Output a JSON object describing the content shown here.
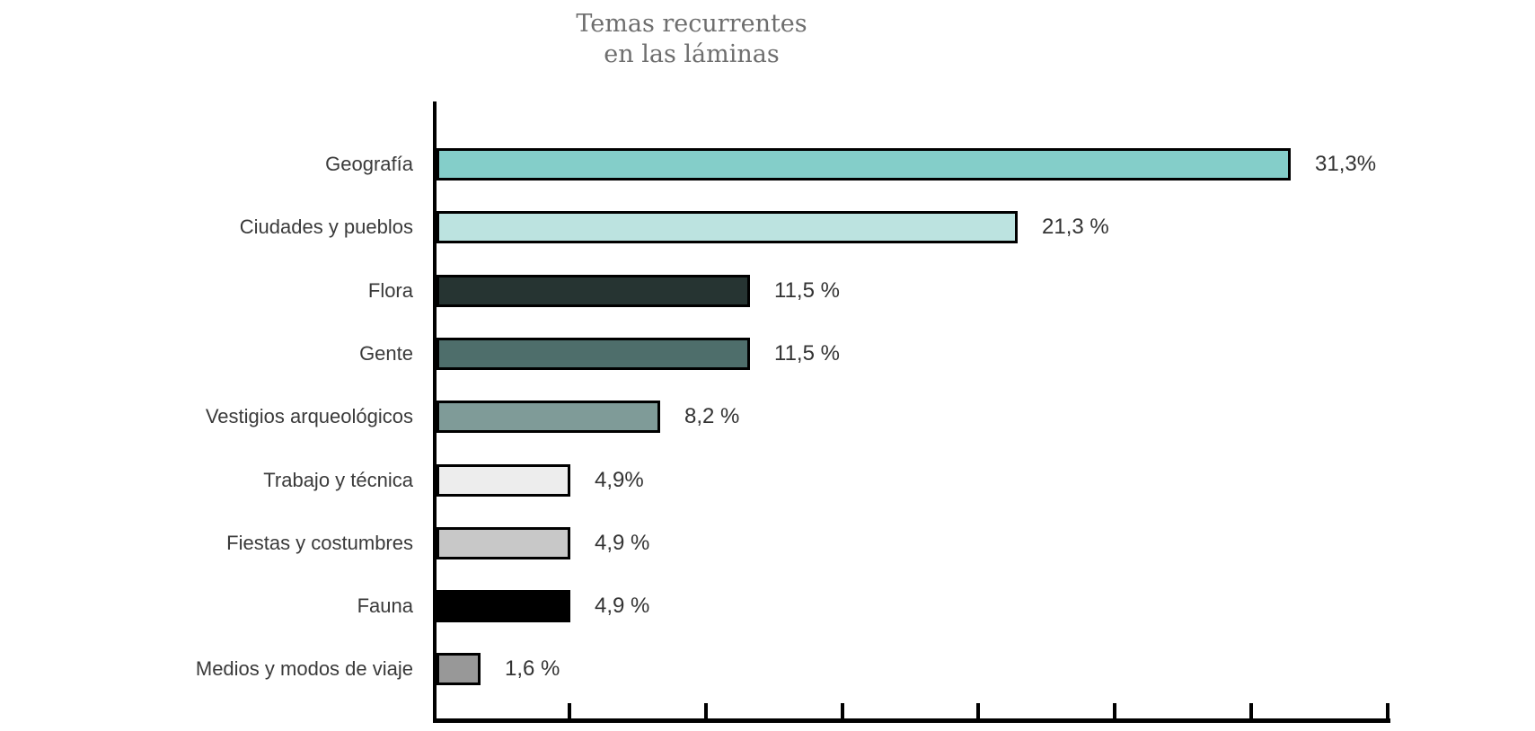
{
  "title": {
    "line1": "Temas recurrentes",
    "line2": "en las láminas"
  },
  "chart_data": {
    "type": "bar",
    "orientation": "horizontal",
    "title": "Temas recurrentes en las láminas",
    "categories": [
      "Geografía",
      "Ciudades y pueblos",
      "Flora",
      "Gente",
      "Vestigios arqueológicos",
      "Trabajo y técnica",
      "Fiestas y costumbres",
      "Fauna",
      "Medios y modos de viaje"
    ],
    "values": [
      31.3,
      21.3,
      11.5,
      11.5,
      8.2,
      4.9,
      4.9,
      4.9,
      1.6
    ],
    "value_labels": [
      "31,3%",
      "21,3 %",
      "11,5 %",
      "11,5 %",
      "8,2 %",
      "4,9%",
      "4,9 %",
      "4,9 %",
      "1,6 %"
    ],
    "bar_colors": [
      "#84cec9",
      "#bce3e0",
      "#263432",
      "#4e6e6b",
      "#7f9b98",
      "#ededed",
      "#c8c8c8",
      "#000000",
      "#989898"
    ],
    "bar_border_color": "#000000",
    "xlabel": "",
    "ylabel": "",
    "xlim": [
      0,
      35
    ],
    "x_ticks": [
      5,
      10,
      15,
      20,
      25,
      30,
      35
    ],
    "grid": false,
    "legend": "none",
    "axis_color": "#000000",
    "category_label_color": "#3a3a3a",
    "value_label_color": "#333333",
    "title_color": "#6e6e6e",
    "background_color": "#ffffff"
  }
}
